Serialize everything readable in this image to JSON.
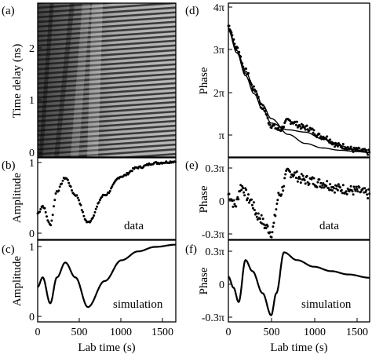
{
  "panels": {
    "a": {
      "label": "(a)",
      "ylabel": "Time delay (ns)",
      "yticks": [
        "0",
        "1",
        "2"
      ]
    },
    "b": {
      "label": "(b)",
      "ylabel": "Amplitude",
      "yticks": [
        "0",
        "1"
      ],
      "note": "data"
    },
    "c": {
      "label": "(c)",
      "ylabel": "Amplitude",
      "yticks": [
        "0",
        "1"
      ],
      "note": "simulation"
    },
    "d": {
      "label": "(d)",
      "ylabel": "Phase",
      "yticks": [
        "π",
        "2π",
        "3π",
        "4π"
      ]
    },
    "e": {
      "label": "(e)",
      "ylabel": "Phase",
      "yticks": [
        "-0.3π",
        "0",
        "0.3π"
      ],
      "note": "data"
    },
    "f": {
      "label": "(f)",
      "ylabel": "Phase",
      "yticks": [
        "-0.3π",
        "0",
        "0.3π"
      ],
      "note": "simulation"
    }
  },
  "xaxis": {
    "label": "Lab time (s)",
    "ticks": [
      "0",
      "500",
      "1000",
      "1500"
    ]
  },
  "chart_data": [
    {
      "type": "heatmap",
      "panel": "a",
      "ylabel": "Time delay (ns)",
      "xlim": [
        0,
        1650
      ],
      "ylim": [
        0,
        2.75
      ]
    },
    {
      "type": "scatter",
      "panel": "b",
      "ylabel": "Amplitude",
      "series_label": "data",
      "xlim": [
        0,
        1650
      ],
      "ylim": [
        -0.05,
        1.05
      ],
      "x": [
        0,
        60,
        150,
        230,
        330,
        450,
        600,
        800,
        1000,
        1200,
        1400,
        1650
      ],
      "y": [
        0.3,
        0.4,
        0.15,
        0.6,
        0.78,
        0.55,
        0.18,
        0.55,
        0.8,
        0.92,
        0.98,
        1.0
      ]
    },
    {
      "type": "line",
      "panel": "c",
      "ylabel": "Amplitude",
      "series_label": "simulation",
      "xlim": [
        0,
        1650
      ],
      "ylim": [
        -0.05,
        1.05
      ],
      "x": [
        0,
        60,
        150,
        230,
        330,
        450,
        600,
        800,
        1000,
        1200,
        1400,
        1650
      ],
      "y": [
        0.42,
        0.55,
        0.2,
        0.55,
        0.75,
        0.55,
        0.15,
        0.5,
        0.78,
        0.9,
        0.96,
        0.99
      ]
    },
    {
      "type": "scatter",
      "panel": "d",
      "ylabel": "Phase",
      "xlim": [
        0,
        1650
      ],
      "ylim": [
        0.7,
        4.1
      ],
      "x": [
        0,
        100,
        200,
        300,
        400,
        500,
        600,
        700,
        900,
        1100,
        1300,
        1500,
        1650
      ],
      "y": [
        3.6,
        3.1,
        2.6,
        2.2,
        1.8,
        1.4,
        1.3,
        1.5,
        1.35,
        1.15,
        0.95,
        0.85,
        0.8
      ]
    },
    {
      "type": "line",
      "panel": "d",
      "ylabel": "Phase",
      "xlim": [
        0,
        1650
      ],
      "ylim": [
        0.7,
        4.1
      ],
      "x": [
        0,
        100,
        200,
        300,
        400,
        500,
        700,
        900,
        1100,
        1300,
        1500,
        1650
      ],
      "y": [
        3.55,
        3.05,
        2.6,
        2.2,
        1.85,
        1.55,
        1.2,
        1.0,
        0.9,
        0.85,
        0.82,
        0.8
      ]
    },
    {
      "type": "line",
      "panel": "d",
      "ylabel": "Phase",
      "xlim": [
        0,
        1650
      ],
      "ylim": [
        0.7,
        4.1
      ],
      "x": [
        0,
        100,
        200,
        300,
        400,
        500,
        700,
        900,
        1100,
        1300,
        1500,
        1650
      ],
      "y": [
        3.5,
        3.0,
        2.5,
        2.1,
        1.75,
        1.45,
        1.3,
        1.25,
        1.1,
        0.95,
        0.85,
        0.8
      ]
    },
    {
      "type": "scatter",
      "panel": "e",
      "ylabel": "Phase",
      "series_label": "data",
      "xlim": [
        0,
        1650
      ],
      "ylim": [
        -0.36,
        0.38
      ],
      "x": [
        0,
        80,
        150,
        250,
        350,
        450,
        500,
        600,
        700,
        900,
        1100,
        1300,
        1500,
        1650
      ],
      "y": [
        0.05,
        -0.05,
        0.12,
        0.0,
        -0.15,
        -0.25,
        -0.3,
        0.05,
        0.25,
        0.18,
        0.15,
        0.1,
        0.08,
        0.05
      ]
    },
    {
      "type": "line",
      "panel": "f",
      "ylabel": "Phase",
      "series_label": "simulation",
      "xlim": [
        0,
        1650
      ],
      "ylim": [
        -0.36,
        0.38
      ],
      "x": [
        0,
        60,
        120,
        200,
        280,
        400,
        500,
        560,
        650,
        800,
        1000,
        1200,
        1400,
        1650
      ],
      "y": [
        0.05,
        -0.05,
        -0.18,
        0.2,
        0.1,
        -0.1,
        -0.3,
        -0.1,
        0.27,
        0.2,
        0.14,
        0.1,
        0.07,
        0.04
      ]
    }
  ]
}
